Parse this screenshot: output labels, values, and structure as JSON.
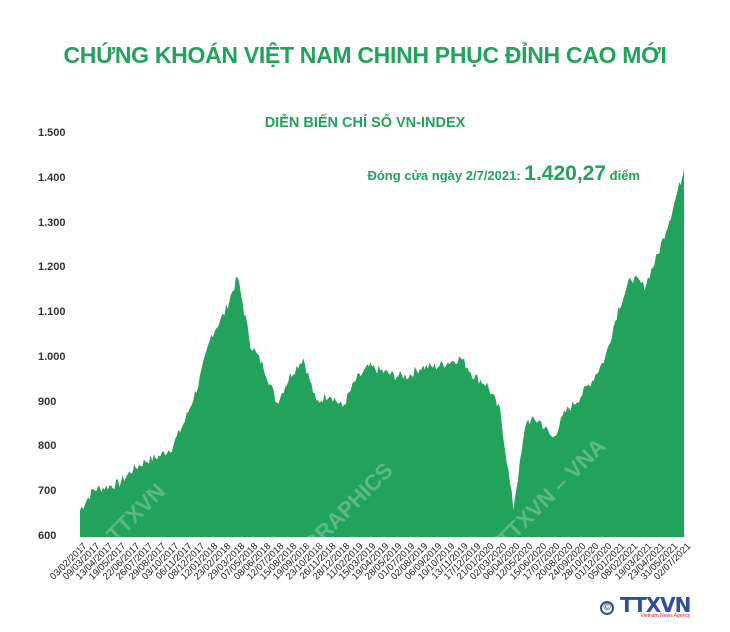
{
  "header": {
    "title": "CHỨNG KHOÁN VIỆT NAM CHINH PHỤC ĐỈNH CAO MỚI",
    "subtitle": "DIỄN BIẾN CHỈ SỐ VN-INDEX"
  },
  "annotation": {
    "label": "Đóng cửa ngày 2/7/2021: ",
    "value": "1.420,27",
    "unit": " điểm"
  },
  "footer": {
    "copyright": "©",
    "brand": "TTXVN",
    "brand_sub": "Vietnam News Agency"
  },
  "watermarks": [
    "TTXVN",
    "GRAPHICS",
    "TTXVN – VNA"
  ],
  "colors": {
    "fill": "#23a25b",
    "title": "#23a25b",
    "brand": "#2e4fa0",
    "brand_accent": "#d3262f"
  },
  "chart_data": {
    "type": "area",
    "title": "DIỄN BIẾN CHỈ SỐ VN-INDEX",
    "xlabel": "",
    "ylabel": "",
    "ylim": [
      600,
      1500
    ],
    "yticks": [
      "600",
      "700",
      "800",
      "900",
      "1.000",
      "1.100",
      "1.200",
      "1.300",
      "1.400",
      "1.500"
    ],
    "grid": false,
    "legend": "none",
    "categories": [
      "03/02/2017",
      "09/03/2017",
      "13/04/2017",
      "19/05/2017",
      "22/06/2017",
      "26/07/2017",
      "29/08/2017",
      "03/10/2017",
      "06/11/2017",
      "08/12/2017",
      "12/01/2018",
      "23/02/2018",
      "29/03/2018",
      "07/05/2018",
      "08/06/2018",
      "12/07/2018",
      "15/08/2018",
      "19/09/2018",
      "23/10/2018",
      "26/11/2018",
      "28/12/2018",
      "11/02/2019",
      "15/03/2019",
      "19/04/2019",
      "28/05/2019",
      "01/07/2019",
      "02/08/2019",
      "06/09/2019",
      "10/10/2019",
      "13/11/2019",
      "17/12/2019",
      "21/01/2020",
      "02/03/2020",
      "06/04/2020",
      "12/05/2020",
      "15/06/2020",
      "17/07/2020",
      "20/08/2020",
      "24/09/2020",
      "28/10/2020",
      "01/12/2020",
      "05/01/2021",
      "08/02/2021",
      "19/03/2021",
      "23/04/2021",
      "31/05/2021",
      "02/07/2021"
    ],
    "series": [
      {
        "name": "VN-Index",
        "values": [
          660,
          705,
          712,
          720,
          750,
          770,
          780,
          800,
          860,
          940,
          1050,
          1100,
          1180,
          1030,
          980,
          900,
          960,
          1000,
          900,
          920,
          890,
          950,
          980,
          970,
          960,
          960,
          980,
          980,
          990,
          1000,
          960,
          940,
          880,
          665,
          860,
          860,
          820,
          880,
          910,
          950,
          1000,
          1110,
          1180,
          1160,
          1230,
          1320,
          1420
        ]
      }
    ],
    "annotations": [
      "Đóng cửa ngày 2/7/2021: 1.420,27 điểm"
    ]
  }
}
